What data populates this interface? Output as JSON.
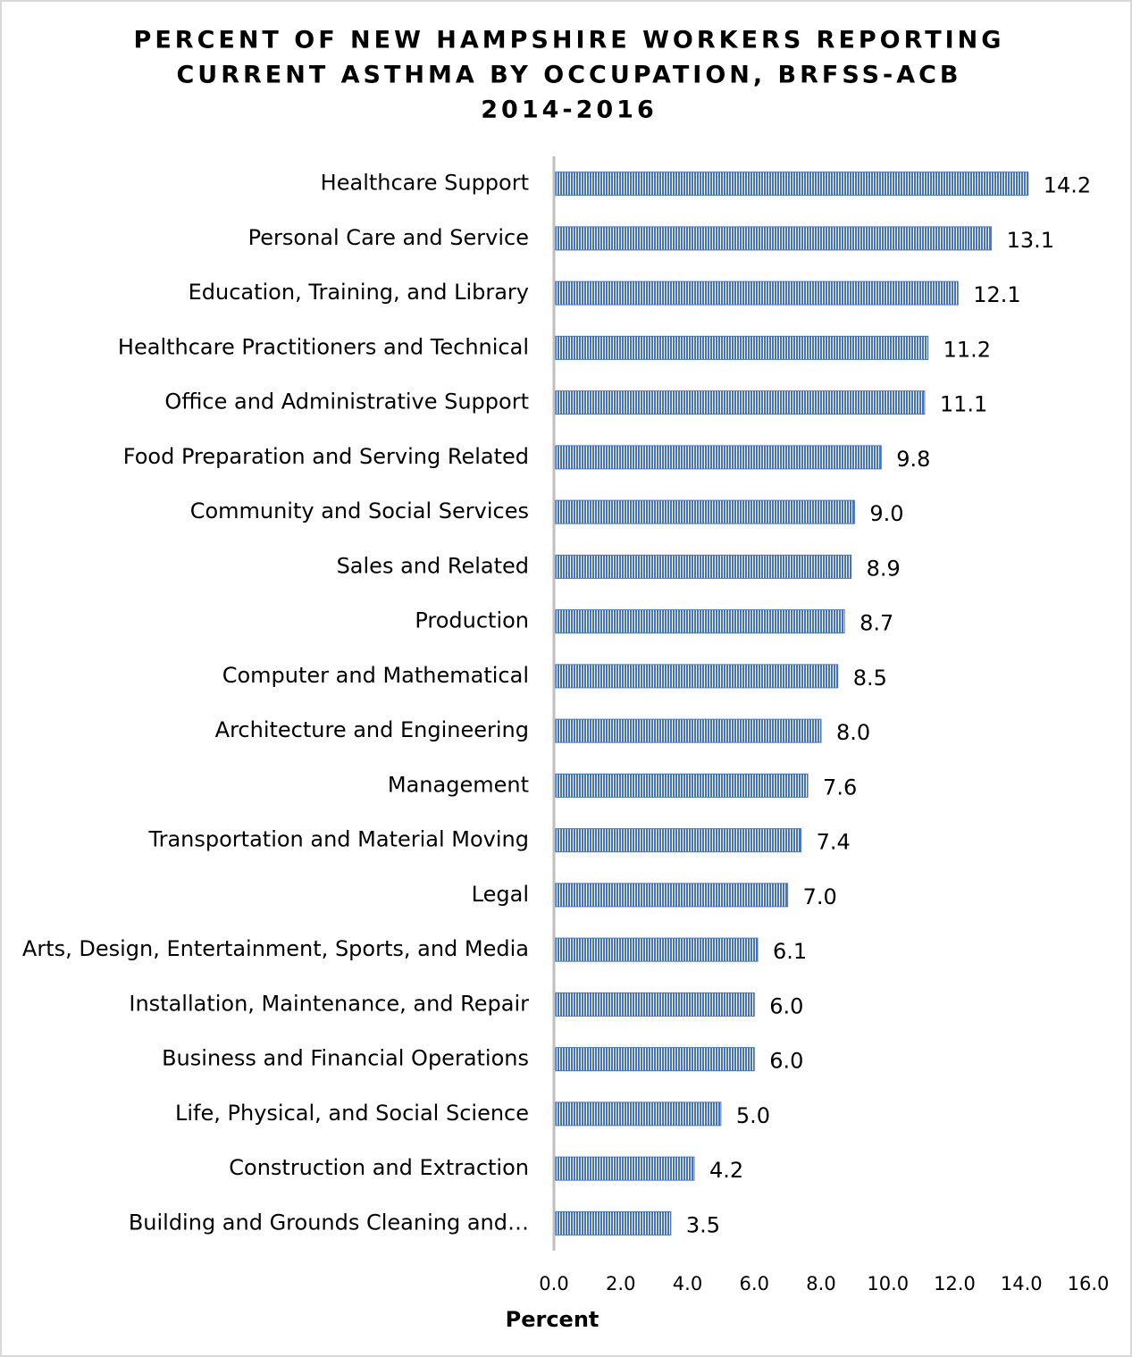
{
  "chart_data": {
    "type": "bar",
    "orientation": "horizontal",
    "title": [
      "PERCENT OF NEW HAMPSHIRE WORKERS REPORTING",
      "CURRENT ASTHMA BY OCCUPATION, BRFSS-ACB",
      "2014-2016"
    ],
    "x_label": "Percent",
    "categories": [
      "Healthcare Support",
      "Personal Care and Service",
      "Education, Training, and Library",
      "Healthcare Practitioners and Technical",
      "Office and Administrative Support",
      "Food Preparation and Serving Related",
      "Community and Social Services",
      "Sales and Related",
      "Production",
      "Computer and Mathematical",
      "Architecture and Engineering",
      "Management",
      "Transportation and Material Moving",
      "Legal",
      "Arts, Design, Entertainment, Sports, and Media",
      "Installation, Maintenance, and Repair",
      "Business and Financial Operations",
      "Life, Physical, and Social Science",
      "Construction and Extraction",
      "Building and Grounds Cleaning and…"
    ],
    "values": [
      14.2,
      13.1,
      12.1,
      11.2,
      11.1,
      9.8,
      9.0,
      8.9,
      8.7,
      8.5,
      8.0,
      7.6,
      7.4,
      7.0,
      6.1,
      6.0,
      6.0,
      5.0,
      4.2,
      3.5
    ],
    "value_labels": [
      "14.2",
      "13.1",
      "12.1",
      "11.2",
      "11.1",
      "9.8",
      "9.0",
      "8.9",
      "8.7",
      "8.5",
      "8.0",
      "7.6",
      "7.4",
      "7.0",
      "6.1",
      "6.0",
      "6.0",
      "5.0",
      "4.2",
      "3.5"
    ],
    "color": "#4472c4",
    "xlim": [
      0,
      16
    ],
    "xticks": [
      {
        "value": 0,
        "label": "0.0"
      },
      {
        "value": 2,
        "label": "2.0"
      },
      {
        "value": 4,
        "label": "4.0"
      },
      {
        "value": 6,
        "label": "6.0"
      },
      {
        "value": 8,
        "label": "8.0"
      },
      {
        "value": 10,
        "label": "10.0"
      },
      {
        "value": 12,
        "label": "12.0"
      },
      {
        "value": 14,
        "label": "14.0"
      },
      {
        "value": 16,
        "label": "16.0"
      }
    ],
    "grid": false
  }
}
